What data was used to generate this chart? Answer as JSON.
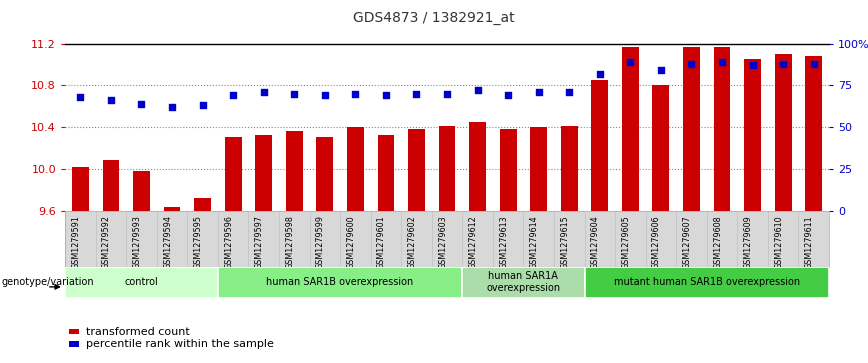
{
  "title": "GDS4873 / 1382921_at",
  "samples": [
    "GSM1279591",
    "GSM1279592",
    "GSM1279593",
    "GSM1279594",
    "GSM1279595",
    "GSM1279596",
    "GSM1279597",
    "GSM1279598",
    "GSM1279599",
    "GSM1279600",
    "GSM1279601",
    "GSM1279602",
    "GSM1279603",
    "GSM1279612",
    "GSM1279613",
    "GSM1279614",
    "GSM1279615",
    "GSM1279604",
    "GSM1279605",
    "GSM1279606",
    "GSM1279607",
    "GSM1279608",
    "GSM1279609",
    "GSM1279610",
    "GSM1279611"
  ],
  "bar_values": [
    10.02,
    10.08,
    9.98,
    9.63,
    9.72,
    10.3,
    10.32,
    10.36,
    10.3,
    10.4,
    10.32,
    10.38,
    10.41,
    10.45,
    10.38,
    10.4,
    10.41,
    10.85,
    11.17,
    10.8,
    11.17,
    11.17,
    11.05,
    11.1,
    11.08
  ],
  "dot_values": [
    68,
    66,
    64,
    62,
    63,
    69,
    71,
    70,
    69,
    70,
    69,
    70,
    70,
    72,
    69,
    71,
    71,
    82,
    89,
    84,
    88,
    89,
    87,
    88,
    88
  ],
  "ymin": 9.6,
  "ymax": 11.2,
  "ylim_right": [
    0,
    100
  ],
  "bar_color": "#cc0000",
  "dot_color": "#0000cc",
  "yticks_left": [
    9.6,
    10.0,
    10.4,
    10.8,
    11.2
  ],
  "yticks_right": [
    0,
    25,
    50,
    75,
    100
  ],
  "ytick_labels_right": [
    "0",
    "25",
    "50",
    "75",
    "100%"
  ],
  "groups": [
    {
      "label": "control",
      "start": 0,
      "end": 5,
      "color": "#ccffcc"
    },
    {
      "label": "human SAR1B overexpression",
      "start": 5,
      "end": 13,
      "color": "#88ee88"
    },
    {
      "label": "human SAR1A\noverexpression",
      "start": 13,
      "end": 17,
      "color": "#aaddaa"
    },
    {
      "label": "mutant human SAR1B overexpression",
      "start": 17,
      "end": 25,
      "color": "#44cc44"
    }
  ],
  "genotype_label": "genotype/variation",
  "legend_bar_label": "transformed count",
  "legend_dot_label": "percentile rank within the sample",
  "grid_color": "#888888",
  "tick_label_color_left": "#cc0000",
  "tick_label_color_right": "#0000cc"
}
